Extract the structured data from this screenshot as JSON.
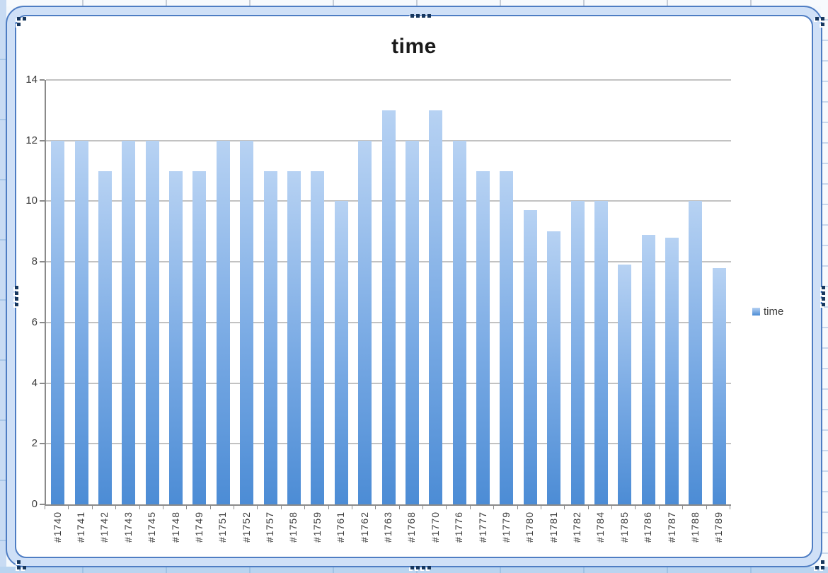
{
  "chart_data": {
    "type": "bar",
    "title": "time",
    "categories": [
      "#1740",
      "#1741",
      "#1742",
      "#1743",
      "#1745",
      "#1748",
      "#1749",
      "#1751",
      "#1752",
      "#1757",
      "#1758",
      "#1759",
      "#1761",
      "#1762",
      "#1763",
      "#1768",
      "#1770",
      "#1776",
      "#1777",
      "#1779",
      "#1780",
      "#1781",
      "#1782",
      "#1784",
      "#1785",
      "#1786",
      "#1787",
      "#1788",
      "#1789"
    ],
    "series": [
      {
        "name": "time",
        "values": [
          12,
          12,
          11,
          12,
          12,
          11,
          11,
          12,
          12,
          11,
          11,
          11,
          10,
          12,
          13,
          12,
          13,
          12,
          11,
          11,
          9.7,
          9,
          10,
          10,
          7.9,
          8.9,
          8.8,
          10,
          7.8
        ]
      }
    ],
    "ylim": [
      0,
      14
    ],
    "yticks": [
      "0",
      "2",
      "4",
      "6",
      "8",
      "10",
      "12",
      "14"
    ],
    "grid": true,
    "legend_position": "right",
    "xlabel": "",
    "ylabel": ""
  },
  "colors": {
    "bar_top": "#b7d2f3",
    "bar_mid": "#79aae4",
    "bar_bottom": "#4c8cd5",
    "frame_line": "#4e7dc3",
    "frame_band": "#cfe0f7",
    "handle_dot": "#17375e",
    "gridline": "#c2c2c2",
    "axis": "#8a8a8a",
    "label_text": "#3d3d3d",
    "title_text": "#1a1a1a"
  }
}
